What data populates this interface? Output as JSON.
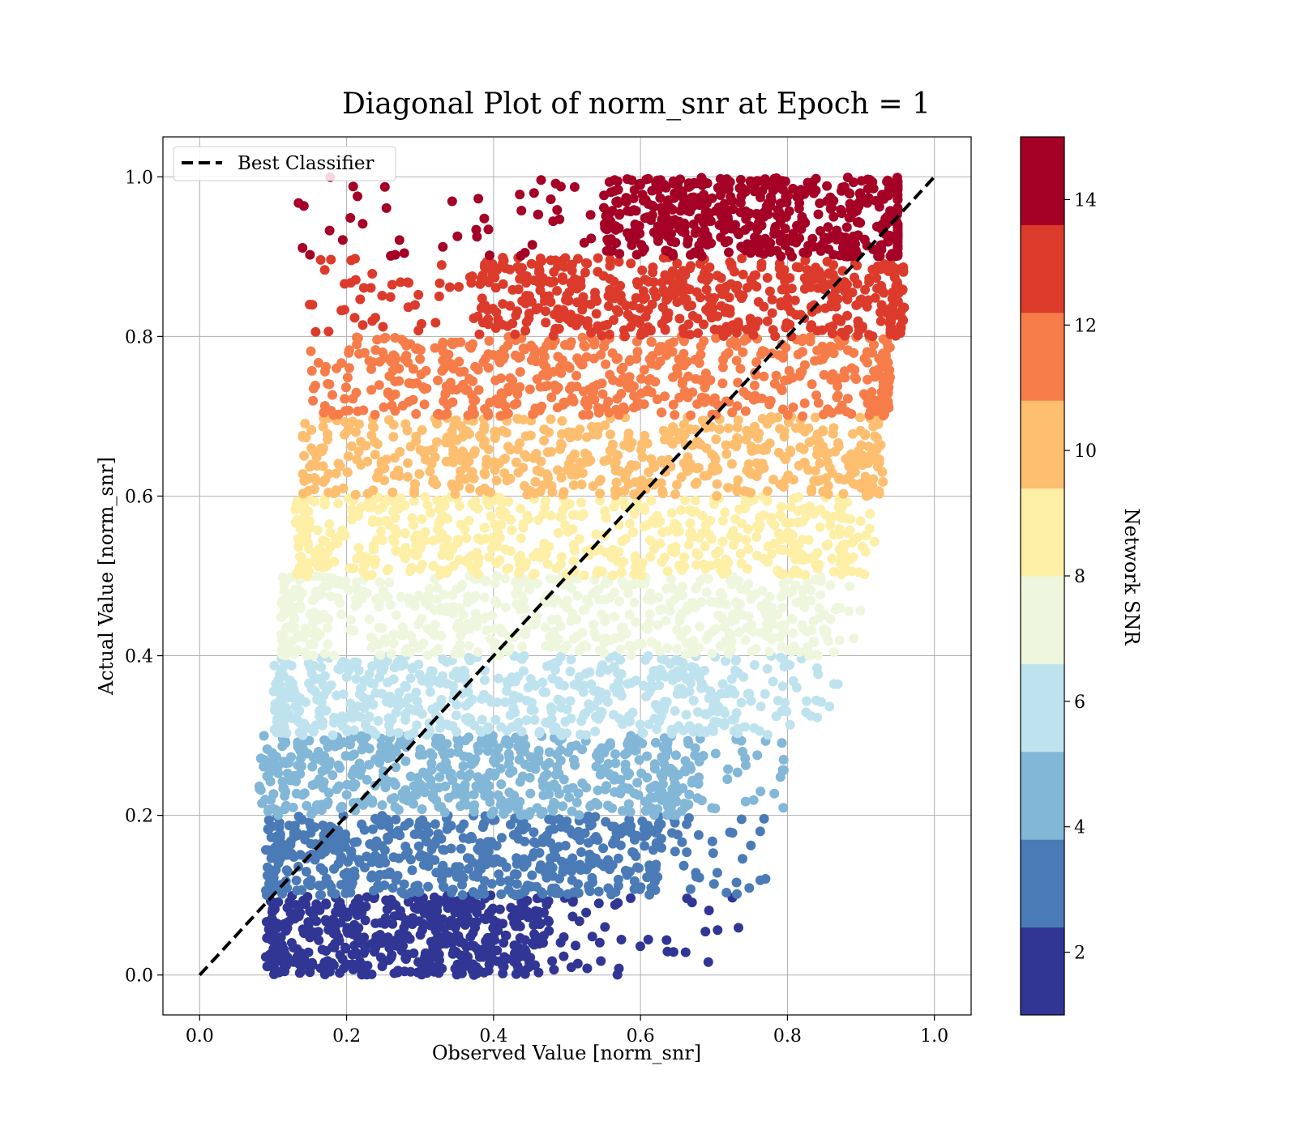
{
  "chart_data": {
    "type": "scatter",
    "title": "Diagonal Plot of norm_snr at Epoch = 1",
    "xlabel": "Observed Value [norm_snr]",
    "ylabel": "Actual Value [norm_snr]",
    "xlim": [
      -0.05,
      1.05
    ],
    "ylim": [
      -0.05,
      1.05
    ],
    "xticks": [
      "0.0",
      "0.2",
      "0.4",
      "0.6",
      "0.8",
      "1.0"
    ],
    "yticks": [
      "0.0",
      "0.2",
      "0.4",
      "0.6",
      "0.8",
      "1.0"
    ],
    "grid": true,
    "legend": {
      "position": "top-left",
      "entries": [
        "Best Classifier"
      ]
    },
    "reference_line": {
      "name": "Best Classifier",
      "x": [
        0.0,
        1.0
      ],
      "y": [
        0.0,
        1.0
      ],
      "style": "dashed",
      "color": "#000000"
    },
    "colorbar": {
      "label": "Network SNR",
      "range": [
        1,
        15
      ],
      "ticks": [
        "2",
        "4",
        "6",
        "8",
        "10",
        "12",
        "14"
      ],
      "colors": [
        "#313695",
        "#4a7bb7",
        "#82b7d7",
        "#bfe3ee",
        "#eef7dd",
        "#fdefa5",
        "#fdbe6f",
        "#f67c4a",
        "#dc3b2c",
        "#a50026"
      ]
    },
    "bands": [
      {
        "snr": 1.7,
        "color": "#313695",
        "y": [
          0.0,
          0.1
        ],
        "x_core": [
          0.11,
          0.47
        ],
        "x_edge": [
          0.09,
          0.75
        ]
      },
      {
        "snr": 3.1,
        "color": "#4a7bb7",
        "y": [
          0.1,
          0.2
        ],
        "x_core": [
          0.11,
          0.62
        ],
        "x_edge": [
          0.09,
          0.78
        ]
      },
      {
        "snr": 4.5,
        "color": "#82b7d7",
        "y": [
          0.2,
          0.3
        ],
        "x_core": [
          0.12,
          0.66
        ],
        "x_edge": [
          0.08,
          0.8
        ]
      },
      {
        "snr": 5.9,
        "color": "#bfe3ee",
        "y": [
          0.3,
          0.4
        ],
        "x_core": [
          0.12,
          0.73
        ],
        "x_edge": [
          0.1,
          0.88
        ]
      },
      {
        "snr": 7.3,
        "color": "#eef7dd",
        "y": [
          0.4,
          0.5
        ],
        "x_core": [
          0.13,
          0.82
        ],
        "x_edge": [
          0.11,
          0.9
        ]
      },
      {
        "snr": 8.7,
        "color": "#fdefa5",
        "y": [
          0.5,
          0.6
        ],
        "x_core": [
          0.15,
          0.87
        ],
        "x_edge": [
          0.13,
          0.92
        ]
      },
      {
        "snr": 10.1,
        "color": "#fdbe6f",
        "y": [
          0.6,
          0.7
        ],
        "x_core": [
          0.2,
          0.9
        ],
        "x_edge": [
          0.14,
          0.93
        ]
      },
      {
        "snr": 11.5,
        "color": "#f67c4a",
        "y": [
          0.7,
          0.8
        ],
        "x_core": [
          0.25,
          0.93
        ],
        "x_edge": [
          0.15,
          0.94
        ]
      },
      {
        "snr": 12.9,
        "color": "#dc3b2c",
        "y": [
          0.8,
          0.9
        ],
        "x_core": [
          0.38,
          0.94
        ],
        "x_edge": [
          0.14,
          0.96
        ]
      },
      {
        "snr": 14.3,
        "color": "#a50026",
        "y": [
          0.9,
          1.0
        ],
        "x_core": [
          0.55,
          0.95
        ],
        "x_edge": [
          0.13,
          0.95
        ]
      }
    ]
  }
}
